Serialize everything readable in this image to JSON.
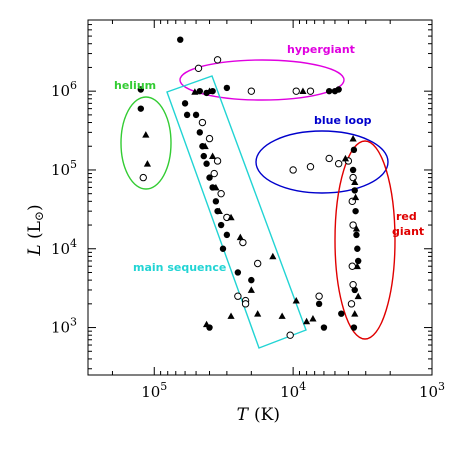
{
  "chart_data": {
    "type": "scatter",
    "title": "",
    "xlabel": "T (K)",
    "ylabel": "L (L⊙)",
    "x_scale": "log",
    "x_reversed": true,
    "y_scale": "log",
    "xlim": [
      300000,
      1000
    ],
    "ylim": [
      250,
      8000000
    ],
    "x_ticks": [
      {
        "value": 100000,
        "label": "10",
        "exp": "5"
      },
      {
        "value": 10000,
        "label": "10",
        "exp": "4"
      },
      {
        "value": 1000,
        "label": "10",
        "exp": "3"
      }
    ],
    "y_ticks": [
      {
        "value": 1000,
        "label": "10",
        "exp": "3"
      },
      {
        "value": 10000,
        "label": "10",
        "exp": "4"
      },
      {
        "value": 100000,
        "label": "10",
        "exp": "5"
      },
      {
        "value": 1000000,
        "label": "10",
        "exp": "6"
      }
    ],
    "grid": false,
    "series": [
      {
        "marker": "filled-circle",
        "points": [
          [
            65000,
            4500000
          ],
          [
            125000,
            1050000
          ],
          [
            47000,
            1000000
          ],
          [
            42000,
            950000
          ],
          [
            38000,
            1000000
          ],
          [
            30000,
            1100000
          ],
          [
            5500,
            1000000
          ],
          [
            5000,
            1000000
          ],
          [
            4700,
            1050000
          ],
          [
            60000,
            700000
          ],
          [
            58000,
            500000
          ],
          [
            50000,
            500000
          ],
          [
            47000,
            300000
          ],
          [
            45000,
            200000
          ],
          [
            44000,
            150000
          ],
          [
            42000,
            120000
          ],
          [
            40000,
            80000
          ],
          [
            38000,
            60000
          ],
          [
            36000,
            40000
          ],
          [
            35000,
            30000
          ],
          [
            33000,
            20000
          ],
          [
            30000,
            15000
          ],
          [
            32000,
            10000
          ],
          [
            25000,
            5000
          ],
          [
            20000,
            4000
          ],
          [
            40000,
            1000
          ],
          [
            6000,
            1000
          ],
          [
            4500,
            1500
          ],
          [
            3700,
            100000
          ],
          [
            3600,
            55000
          ],
          [
            3550,
            30000
          ],
          [
            3500,
            15000
          ],
          [
            3450,
            10000
          ],
          [
            3400,
            7000
          ],
          [
            3650,
            180000
          ],
          [
            3600,
            3000
          ],
          [
            125000,
            600000
          ],
          [
            3650,
            1000
          ],
          [
            6500,
            2000
          ]
        ]
      },
      {
        "marker": "open-circle",
        "points": [
          [
            35000,
            2500000
          ],
          [
            48000,
            1950000
          ],
          [
            20000,
            1000000
          ],
          [
            9500,
            1000000
          ],
          [
            7500,
            1000000
          ],
          [
            45000,
            400000
          ],
          [
            40000,
            250000
          ],
          [
            35000,
            130000
          ],
          [
            37000,
            90000
          ],
          [
            33000,
            50000
          ],
          [
            30000,
            25000
          ],
          [
            23000,
            12000
          ],
          [
            18000,
            6500
          ],
          [
            25000,
            2500
          ],
          [
            22000,
            2200
          ],
          [
            10500,
            800
          ],
          [
            10000,
            100000
          ],
          [
            7500,
            110000
          ],
          [
            5500,
            140000
          ],
          [
            4700,
            120000
          ],
          [
            4000,
            130000
          ],
          [
            3700,
            80000
          ],
          [
            3750,
            40000
          ],
          [
            3700,
            20000
          ],
          [
            3750,
            6000
          ],
          [
            3700,
            3500
          ],
          [
            3800,
            2000
          ],
          [
            120000,
            80000
          ],
          [
            6500,
            2500
          ],
          [
            22000,
            2000
          ]
        ]
      },
      {
        "marker": "filled-triangle",
        "points": [
          [
            51000,
            980000
          ],
          [
            40000,
            1000000
          ],
          [
            8500,
            1000000
          ],
          [
            115000,
            280000
          ],
          [
            112000,
            120000
          ],
          [
            43000,
            200000
          ],
          [
            38000,
            150000
          ],
          [
            36000,
            60000
          ],
          [
            34000,
            30000
          ],
          [
            28000,
            25000
          ],
          [
            24000,
            14000
          ],
          [
            14000,
            8000
          ],
          [
            20000,
            3000
          ],
          [
            12000,
            1400
          ],
          [
            18000,
            1500
          ],
          [
            9500,
            2200
          ],
          [
            8000,
            1200
          ],
          [
            3700,
            250000
          ],
          [
            3600,
            70000
          ],
          [
            3550,
            45000
          ],
          [
            3500,
            18000
          ],
          [
            3450,
            6000
          ],
          [
            3400,
            2500
          ],
          [
            3600,
            1500
          ],
          [
            42000,
            1100
          ],
          [
            28000,
            1400
          ],
          [
            7200,
            1300
          ],
          [
            4200,
            140000
          ]
        ]
      }
    ],
    "annotations": [
      {
        "text": "hypergiant",
        "color": "#e000e0"
      },
      {
        "text": "helium",
        "color": "#33cc33"
      },
      {
        "text": "blue loop",
        "color": "#0000cc"
      },
      {
        "text": "main sequence",
        "color": "#22d4d4"
      },
      {
        "text": "red",
        "color": "#e00000"
      },
      {
        "text": "giant",
        "color": "#e00000"
      }
    ]
  }
}
